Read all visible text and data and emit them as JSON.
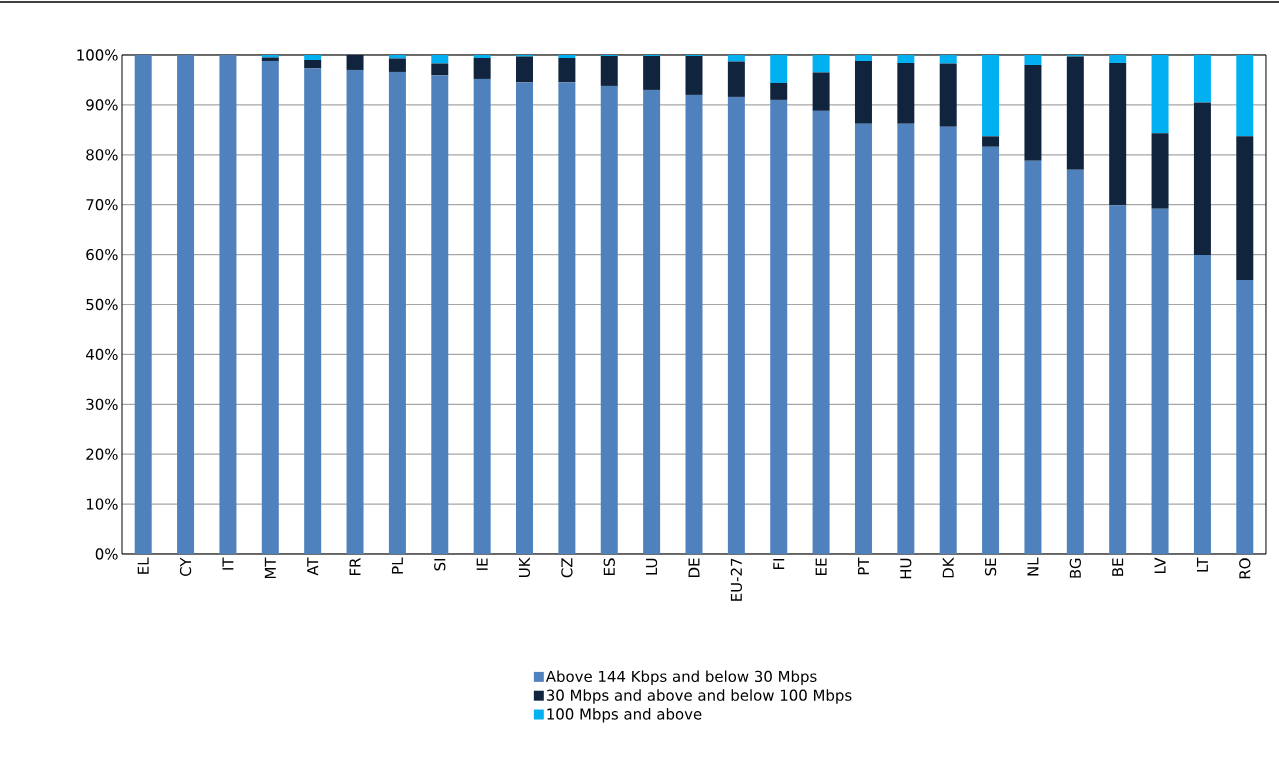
{
  "chart_data": {
    "type": "bar",
    "stacked": true,
    "categories": [
      "EL",
      "CY",
      "IT",
      "MT",
      "AT",
      "FR",
      "PL",
      "SI",
      "IE",
      "UK",
      "CZ",
      "ES",
      "LU",
      "DE",
      "EU-27",
      "FI",
      "EE",
      "PT",
      "HU",
      "DK",
      "SE",
      "NL",
      "BG",
      "BE",
      "LV",
      "LT",
      "RO"
    ],
    "series": [
      {
        "name": "Above 144 Kbps and below 30 Mbps",
        "color": "#4f81bd",
        "values": [
          100,
          100,
          100,
          98.8,
          97.3,
          97,
          96.6,
          95.9,
          95.2,
          94.5,
          94.5,
          93.8,
          93,
          92,
          91.6,
          91,
          88.8,
          86.2,
          86.2,
          85.6,
          81.6,
          78.8,
          77,
          69.9,
          69.2,
          59.9,
          54.9
        ]
      },
      {
        "name": "30 Mbps and above and below 100 Mbps",
        "color": "#10243e",
        "values": [
          0,
          0,
          0,
          0.7,
          1.7,
          3,
          2.7,
          2.4,
          4.2,
          5.2,
          4.9,
          6,
          6.8,
          7.8,
          7.1,
          3.4,
          7.7,
          12.6,
          12.2,
          12.7,
          2.1,
          19.2,
          22.7,
          28.5,
          15.1,
          30.6,
          28.8
        ]
      },
      {
        "name": "100 Mbps and above",
        "color": "#00b0f0",
        "values": [
          0,
          0,
          0,
          0.5,
          1,
          0,
          0.7,
          1.7,
          0.6,
          0.3,
          0.6,
          0.2,
          0.2,
          0.2,
          1.3,
          5.6,
          3.5,
          1.2,
          1.6,
          1.7,
          16.3,
          2,
          0.3,
          1.6,
          15.7,
          9.5,
          16.3
        ]
      }
    ],
    "ylim": [
      0,
      100
    ],
    "yticks": [
      {
        "value": 0,
        "label": "0%"
      },
      {
        "value": 10,
        "label": "10%"
      },
      {
        "value": 20,
        "label": "20%"
      },
      {
        "value": 30,
        "label": "30%"
      },
      {
        "value": 40,
        "label": "40%"
      },
      {
        "value": 50,
        "label": "50%"
      },
      {
        "value": 60,
        "label": "60%"
      },
      {
        "value": 70,
        "label": "70%"
      },
      {
        "value": 80,
        "label": "80%"
      },
      {
        "value": 90,
        "label": "90%"
      },
      {
        "value": 100,
        "label": "100%"
      }
    ],
    "grid": "y",
    "legend": "bottom"
  }
}
